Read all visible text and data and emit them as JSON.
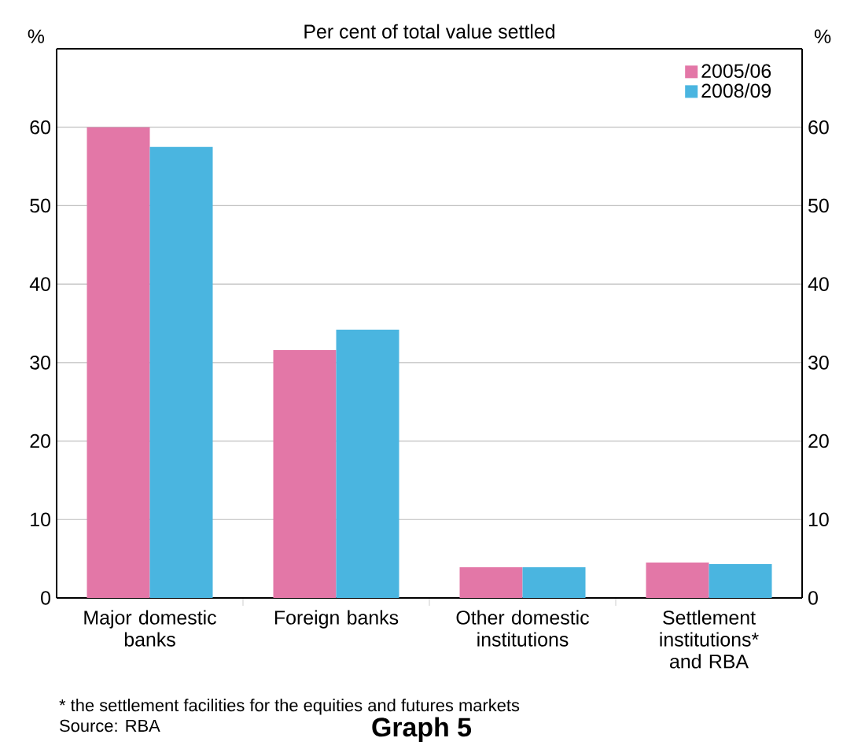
{
  "chart_data": {
    "type": "bar",
    "subtitle": "Per cent of total value settled",
    "ylabel": "%",
    "y2label": "%",
    "categories": [
      "Major domestic banks",
      "Foreign banks",
      "Other domestic institutions",
      "Settlement institutions* and RBA"
    ],
    "series": [
      {
        "name": "2005/06",
        "color": "#e377a7",
        "values": [
          60,
          31.6,
          3.9,
          4.5
        ]
      },
      {
        "name": "2008/09",
        "color": "#4ab5e0",
        "values": [
          57.5,
          34.2,
          3.9,
          4.3
        ]
      }
    ],
    "ylim": [
      0,
      70
    ],
    "yticks": [
      0,
      10,
      20,
      30,
      40,
      50,
      60
    ],
    "y2lim": [
      0,
      70
    ],
    "y2ticks": [
      0,
      10,
      20,
      30,
      40,
      50,
      60
    ],
    "grid": "y",
    "legend": "top right",
    "annotations": [
      "* the settlement facilities for the equities and futures markets",
      "Source: RBA",
      "Graph 5"
    ]
  }
}
